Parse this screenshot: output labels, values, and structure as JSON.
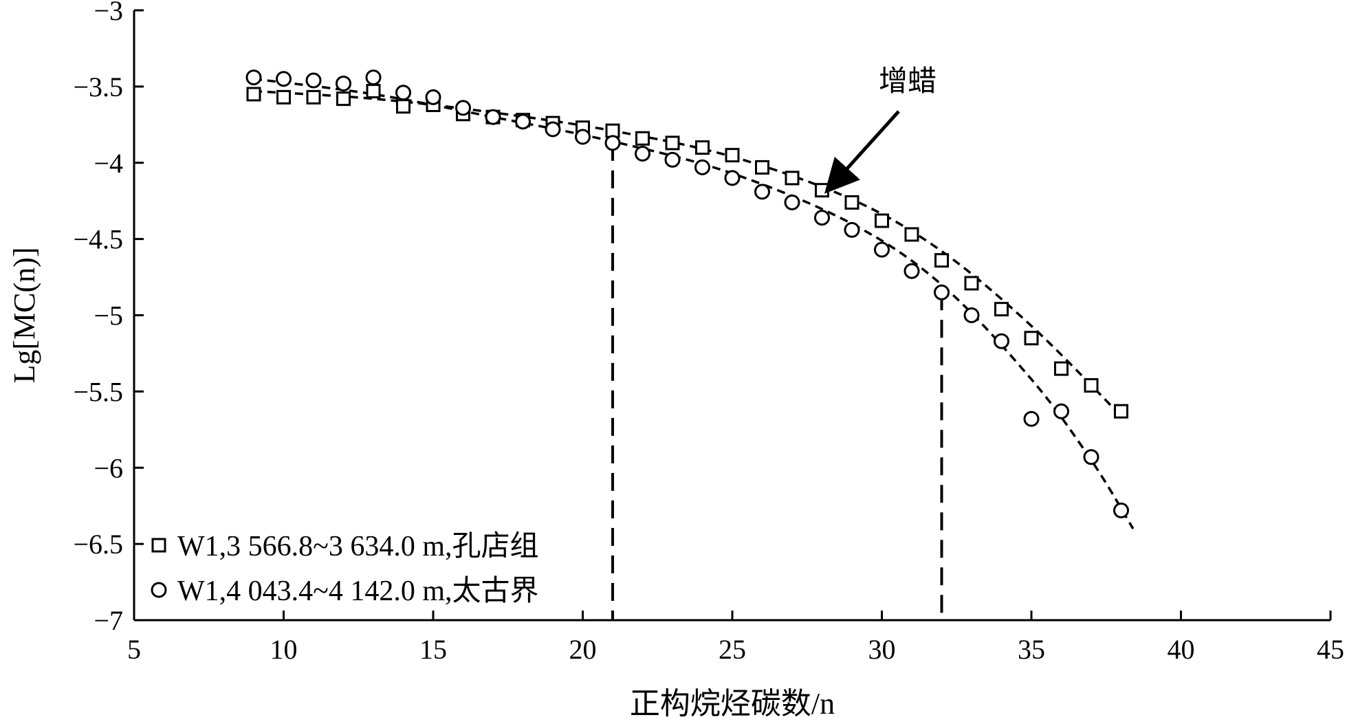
{
  "chart_data": {
    "type": "scatter",
    "title": "",
    "xlabel": "正构烷烃碳数/n",
    "ylabel": "Lg[MC(n)]",
    "xlim": [
      5,
      45
    ],
    "ylim": [
      -7,
      -3
    ],
    "x_ticks": [
      5,
      10,
      15,
      20,
      25,
      30,
      35,
      40,
      45
    ],
    "y_ticks": [
      -3,
      -3.5,
      -4,
      -4.5,
      -5,
      -5.5,
      -6,
      -6.5,
      -7
    ],
    "x_tick_labels": [
      "5",
      "10",
      "15",
      "20",
      "25",
      "30",
      "35",
      "40",
      "45"
    ],
    "y_tick_labels": [
      "−3",
      "−3.5",
      "−4",
      "−4.5",
      "−5",
      "−5.5",
      "−6",
      "−6.5",
      "−7"
    ],
    "grid": false,
    "legend_position": "bottom-left",
    "series": [
      {
        "name": "W1,3 566.8~3 634.0 m,孔店组",
        "marker": "square",
        "x": [
          9,
          10,
          11,
          12,
          13,
          14,
          15,
          16,
          17,
          18,
          19,
          20,
          21,
          22,
          23,
          24,
          25,
          26,
          27,
          28,
          29,
          30,
          31,
          32,
          33,
          34,
          35,
          36,
          37,
          38
        ],
        "y": [
          -3.55,
          -3.57,
          -3.57,
          -3.58,
          -3.53,
          -3.63,
          -3.62,
          -3.68,
          -3.7,
          -3.72,
          -3.74,
          -3.77,
          -3.79,
          -3.84,
          -3.87,
          -3.9,
          -3.95,
          -4.03,
          -4.1,
          -4.18,
          -4.26,
          -4.38,
          -4.47,
          -4.64,
          -4.79,
          -4.96,
          -5.15,
          -5.35,
          -5.46,
          -5.63
        ],
        "fit_x": [
          9,
          13,
          17,
          21,
          25,
          29,
          32,
          35,
          38
        ],
        "fit_y": [
          -3.53,
          -3.58,
          -3.67,
          -3.79,
          -3.96,
          -4.24,
          -4.58,
          -5.07,
          -5.66
        ]
      },
      {
        "name": "W1,4 043.4~4 142.0 m,太古界",
        "marker": "circle",
        "x": [
          9,
          10,
          11,
          12,
          13,
          14,
          15,
          16,
          17,
          18,
          19,
          20,
          21,
          22,
          23,
          24,
          25,
          26,
          27,
          28,
          29,
          30,
          31,
          32,
          33,
          34,
          35,
          36,
          37,
          38
        ],
        "y": [
          -3.44,
          -3.45,
          -3.46,
          -3.48,
          -3.44,
          -3.54,
          -3.57,
          -3.64,
          -3.7,
          -3.73,
          -3.78,
          -3.83,
          -3.87,
          -3.94,
          -3.98,
          -4.03,
          -4.1,
          -4.19,
          -4.26,
          -4.36,
          -4.44,
          -4.57,
          -4.71,
          -4.85,
          -5.0,
          -5.17,
          -5.68,
          -5.63,
          -5.93,
          -6.28
        ],
        "fit_x": [
          9,
          13,
          17,
          21,
          25,
          29,
          32,
          35,
          37,
          38.4
        ],
        "fit_y": [
          -3.45,
          -3.55,
          -3.7,
          -3.86,
          -4.07,
          -4.4,
          -4.8,
          -5.42,
          -5.95,
          -6.4
        ]
      }
    ],
    "reference_lines": [
      {
        "x": 21,
        "y_top": -3.87
      },
      {
        "x": 32,
        "y_top": -4.85
      }
    ],
    "annotations": [
      {
        "text": "增蜡",
        "arrow_to_x": 29,
        "arrow_to_y": -4.18
      }
    ]
  }
}
